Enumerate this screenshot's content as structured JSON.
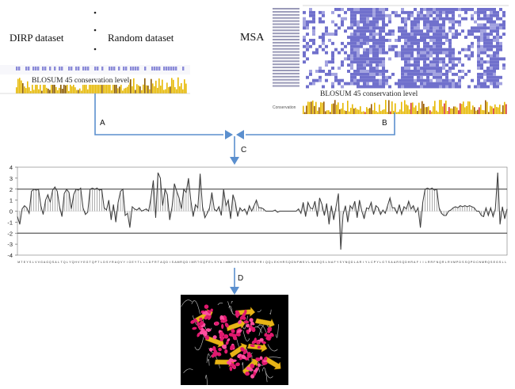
{
  "labels": {
    "dirp": "DIRP dataset",
    "random": "Random dataset",
    "msa": "MSA",
    "blosum_left": "BLOSUM 45 conservation level",
    "blosum_right": "BLOSUM 45 conservation level",
    "conservation_tag": "Conservation"
  },
  "arrows": {
    "a": "A",
    "b": "B",
    "c": "C",
    "d": "D"
  },
  "colors": {
    "arrow": "#5b8fce",
    "msa_fill": "#7b7bd4",
    "conservation": "#e6b800",
    "structure_bg": "#000000",
    "helix": "#e0196e",
    "sheet": "#e8b417"
  },
  "chart_data": {
    "type": "line",
    "title": "",
    "xlabel": "",
    "ylabel": "",
    "ylim": [
      -4,
      4
    ],
    "yticks": [
      -4,
      -3,
      -2,
      -1,
      0,
      1,
      2,
      3,
      4
    ],
    "reference_lines": [
      2,
      -2
    ],
    "series": [
      {
        "values": [
          -0.5,
          -1.2,
          0.2,
          0.5,
          0.3,
          -0.2,
          1.8,
          2.0,
          1.9,
          2.0,
          0.5,
          -0.3,
          1.0,
          1.5,
          0.8,
          1.9,
          2.2,
          1.8,
          0.4,
          -0.5,
          1.6,
          2.0,
          1.7,
          0.2,
          1.5,
          2.0,
          1.9,
          2.1,
          0.3,
          -0.3,
          -0.1,
          2.0,
          2.1,
          2.0,
          2.1,
          1.9,
          2.0,
          0.3,
          0.1,
          1.0,
          -0.8,
          0.6,
          -1.0,
          0.8,
          1.8,
          2.0,
          -0.4,
          -0.2,
          -1.5,
          0.4,
          0.2,
          0.1,
          0.3,
          0.0,
          0.1,
          0.2,
          0.0,
          1.2,
          2.8,
          -0.6,
          3.5,
          3.0,
          0.5,
          2.0,
          1.5,
          -0.8,
          0.4,
          2.5,
          1.8,
          1.2,
          0.2,
          2.0,
          1.7,
          3.0,
          1.0,
          -0.5,
          0.6,
          0.3,
          3.4,
          0.4,
          -0.6,
          -0.2,
          0.3,
          1.7,
          0.2,
          0.0,
          0.4,
          -0.4,
          2.0,
          0.5,
          1.0,
          -0.7,
          1.5,
          0.8,
          -0.5,
          0.3,
          0.0,
          0.2,
          -0.3,
          0.5,
          0.0,
          0.5,
          1.0,
          0.3,
          0.3,
          0.2,
          0.0,
          0.0,
          0.0,
          0.0,
          0.1,
          -0.1,
          0.0,
          0.0,
          0.0,
          0.0,
          0.0,
          0.0,
          0.0,
          0.0,
          0.2,
          -0.2,
          0.8,
          -0.5,
          0.8,
          0.3,
          0.2,
          0.9,
          -0.5,
          1.2,
          0.6,
          -0.4,
          0.7,
          -1.2,
          0.5,
          -0.8,
          0.4,
          1.6,
          -3.5,
          -0.3,
          0.5,
          -1.0,
          0.5,
          0.2,
          0.9,
          -0.6,
          1.0,
          0.0,
          -0.7,
          0.3,
          0.2,
          0.8,
          -0.3,
          0.5,
          0.3,
          -0.3,
          0.1,
          -0.2,
          0.5,
          1.2,
          0.3,
          0.3,
          -0.2,
          0.6,
          -0.3,
          0.4,
          0.2,
          0.9,
          0.2,
          0.5,
          -0.1,
          0.3,
          -1.5,
          0.8,
          2.0,
          2.1,
          2.0,
          2.1,
          1.9,
          2.0,
          0.3,
          -0.2,
          -0.4,
          -0.4,
          0.0,
          0.1,
          0.3,
          0.4,
          0.3,
          0.5,
          0.4,
          0.5,
          0.4,
          0.5,
          0.4,
          0.3,
          0.0,
          0.0,
          -0.4,
          -0.5,
          0.3,
          -0.4,
          0.3,
          -0.5,
          0.2,
          3.5,
          -1.2,
          0.4,
          -0.7,
          0.2
        ]
      }
    ],
    "sequence": "MTEYSLVVGAGQSALTQLYQHVYEGTQPTLDSYRAQVYIGEYTLLLDFRTAQDISAMRQDIMRTGQFELSYAIMWFRSTSSVRDYRIQQLEKHRSQGNFWSVLNAEQSLNAFYSYNQDLARIYLCPYLGTSAARSQDHRAFIILRRFNQRLRVMPDSSQPDCNMRQSEGSLL"
  }
}
